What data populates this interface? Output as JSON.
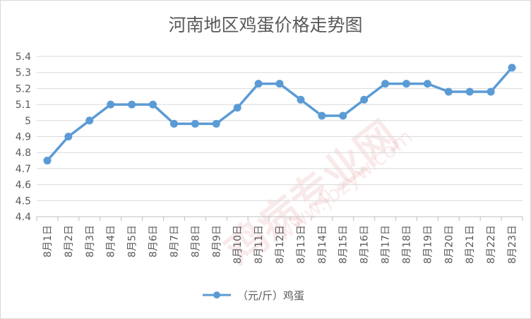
{
  "chart_data": {
    "type": "line",
    "title": "河南地区鸡蛋价格走势图",
    "categories": [
      "8月1日",
      "8月2日",
      "8月3日",
      "8月4日",
      "8月5日",
      "8月6日",
      "8月7日",
      "8月8日",
      "8月9日",
      "8月10日",
      "8月11日",
      "8月12日",
      "8月13日",
      "8月14日",
      "8月15日",
      "8月16日",
      "8月17日",
      "8月18日",
      "8月19日",
      "8月20日",
      "8月21日",
      "8月22日",
      "8月23日"
    ],
    "series": [
      {
        "name": "（元/斤）鸡蛋",
        "values": [
          4.75,
          4.9,
          5.0,
          5.1,
          5.1,
          5.1,
          4.98,
          4.98,
          4.98,
          5.08,
          5.23,
          5.23,
          5.13,
          5.03,
          5.03,
          5.13,
          5.23,
          5.23,
          5.23,
          5.18,
          5.18,
          5.18,
          5.33
        ]
      }
    ],
    "yticks": [
      "4.4",
      "4.5",
      "4.6",
      "4.7",
      "4.8",
      "4.9",
      "5",
      "5.1",
      "5.2",
      "5.3",
      "5.4"
    ],
    "ylim": [
      4.4,
      5.4
    ],
    "grid": true,
    "legend": "bottom",
    "color": "#5b9bd5"
  }
}
